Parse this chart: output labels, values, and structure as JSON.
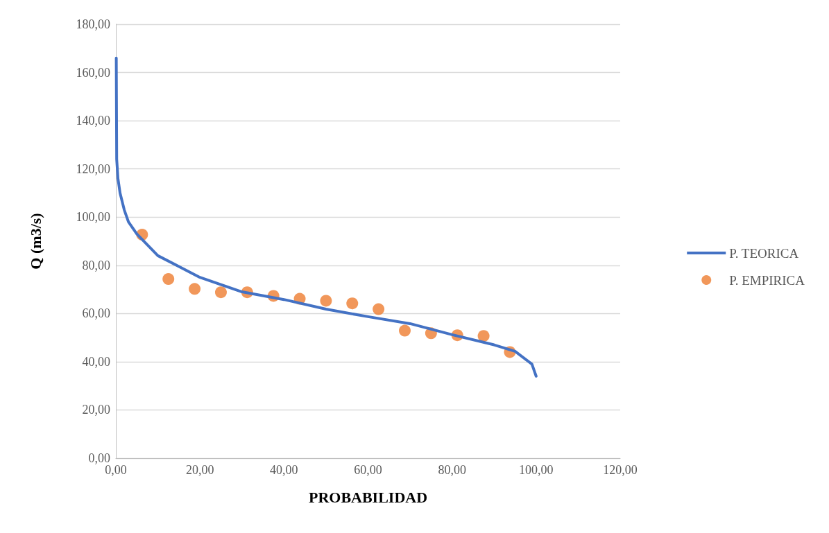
{
  "chart_data": {
    "type": "line",
    "xlabel": "PROBABILIDAD",
    "ylabel": "Q (m3/s)",
    "xlim": [
      0,
      120
    ],
    "xticks": [
      {
        "value": 0,
        "label": "0,00"
      },
      {
        "value": 20,
        "label": "20,00"
      },
      {
        "value": 40,
        "label": "40,00"
      },
      {
        "value": 60,
        "label": "60,00"
      },
      {
        "value": 80,
        "label": "80,00"
      },
      {
        "value": 100,
        "label": "100,00"
      },
      {
        "value": 120,
        "label": "120,00"
      }
    ],
    "ylim": [
      0,
      180
    ],
    "yticks": [
      {
        "value": 0,
        "label": "0,00"
      },
      {
        "value": 20,
        "label": "20,00"
      },
      {
        "value": 40,
        "label": "40,00"
      },
      {
        "value": 60,
        "label": "60,00"
      },
      {
        "value": 80,
        "label": "80,00"
      },
      {
        "value": 100,
        "label": "100,00"
      },
      {
        "value": 120,
        "label": "120,00"
      },
      {
        "value": 140,
        "label": "140,00"
      },
      {
        "value": 160,
        "label": "160,00"
      },
      {
        "value": 180,
        "label": "180,00"
      }
    ],
    "grid": "y",
    "legend": "right",
    "series": [
      {
        "name": "P. TEORICA",
        "color": "#4472c4",
        "marker": "none",
        "line_style": "solid",
        "x": [
          0.1,
          0.2,
          0.5,
          1,
          2,
          3,
          5,
          10,
          20,
          30,
          40,
          50,
          60,
          70,
          80,
          90,
          95,
          99,
          100
        ],
        "values": [
          166,
          124,
          116,
          110,
          103,
          98,
          93,
          84,
          75,
          69,
          65.8,
          61.8,
          58.7,
          55.8,
          51.2,
          47,
          44.3,
          39,
          34
        ]
      },
      {
        "name": "P. EMPIRICA",
        "type": "scatter",
        "color": "#ed7d31",
        "marker": "circle",
        "x": [
          6.25,
          12.5,
          18.75,
          25,
          31.25,
          37.5,
          43.75,
          50,
          56.25,
          62.5,
          68.75,
          75,
          81.25,
          87.5,
          93.75
        ],
        "values": [
          92.7,
          74.3,
          70.2,
          68.8,
          68.8,
          67.3,
          66.1,
          65.3,
          64.2,
          61.8,
          52.9,
          51.8,
          51,
          50.7,
          44
        ]
      }
    ]
  }
}
